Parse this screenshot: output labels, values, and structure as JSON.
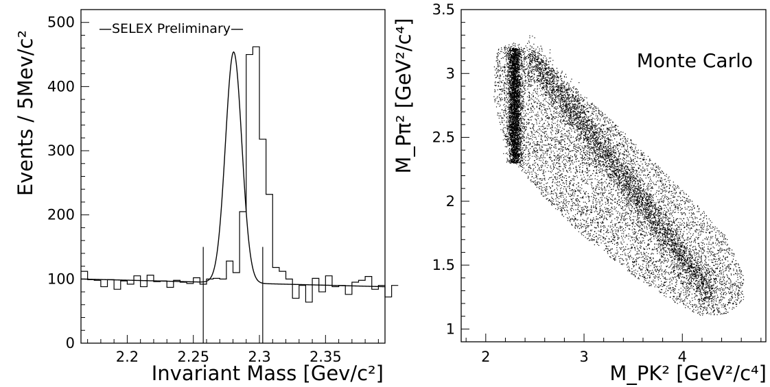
{
  "chart_data": [
    {
      "type": "histogram",
      "annotation": "—SELEX Preliminary—",
      "xlabel": "Invariant Mass [Gev/c²]",
      "ylabel": "Events / 5Mev/c²",
      "xlim": [
        2.165,
        2.395
      ],
      "ylim": [
        0,
        520
      ],
      "xticks": [
        2.2,
        2.25,
        2.3,
        2.35
      ],
      "xtick_labels": [
        "2.2",
        "2.25",
        "2.3",
        "2.35"
      ],
      "yticks": [
        0,
        100,
        200,
        300,
        400,
        500
      ],
      "ytick_labels": [
        "0",
        "100",
        "200",
        "300",
        "400",
        "500"
      ],
      "bin_width": 0.005,
      "bin_start": 2.165,
      "counts": [
        112,
        99,
        98,
        88,
        99,
        84,
        97,
        92,
        105,
        88,
        106,
        96,
        97,
        87,
        98,
        95,
        93,
        102,
        92,
        100,
        101,
        100,
        128,
        110,
        205,
        450,
        462,
        318,
        232,
        118,
        112,
        100,
        70,
        90,
        64,
        101,
        80,
        105,
        88,
        90,
        76,
        95,
        98,
        104,
        84,
        90,
        72,
        90
      ],
      "fit": {
        "shape": "gaussian+linear",
        "mean": 2.2805,
        "sigma": 0.0062,
        "amplitude": 360,
        "background_start": 100,
        "background_end": 88
      },
      "markers_x": [
        2.2575,
        2.3025
      ],
      "markers_height": 150
    },
    {
      "type": "scatter",
      "annotation": "Monte Carlo",
      "xlabel": "M_PK² [GeV²/c⁴]",
      "ylabel": "M_Pπ² [GeV²/c⁴]",
      "xlim": [
        1.75,
        4.85
      ],
      "ylim": [
        0.9,
        3.5
      ],
      "xticks": [
        2,
        3,
        4
      ],
      "xtick_labels": [
        "2",
        "3",
        "4"
      ],
      "yticks": [
        1,
        1.5,
        2,
        2.5,
        3,
        3.5
      ],
      "ytick_labels": [
        "1",
        "1.5",
        "2",
        "2.5",
        "3",
        "3.5"
      ],
      "points_sampled": 14000,
      "bands": [
        {
          "name": "",
          "center_x": 2.29,
          "y_range": [
            2.3,
            3.2
          ]
        },
        {
          "name": "",
          "from": [
            2.45,
            3.15
          ],
          "to": [
            4.3,
            1.25
          ]
        }
      ]
    }
  ]
}
